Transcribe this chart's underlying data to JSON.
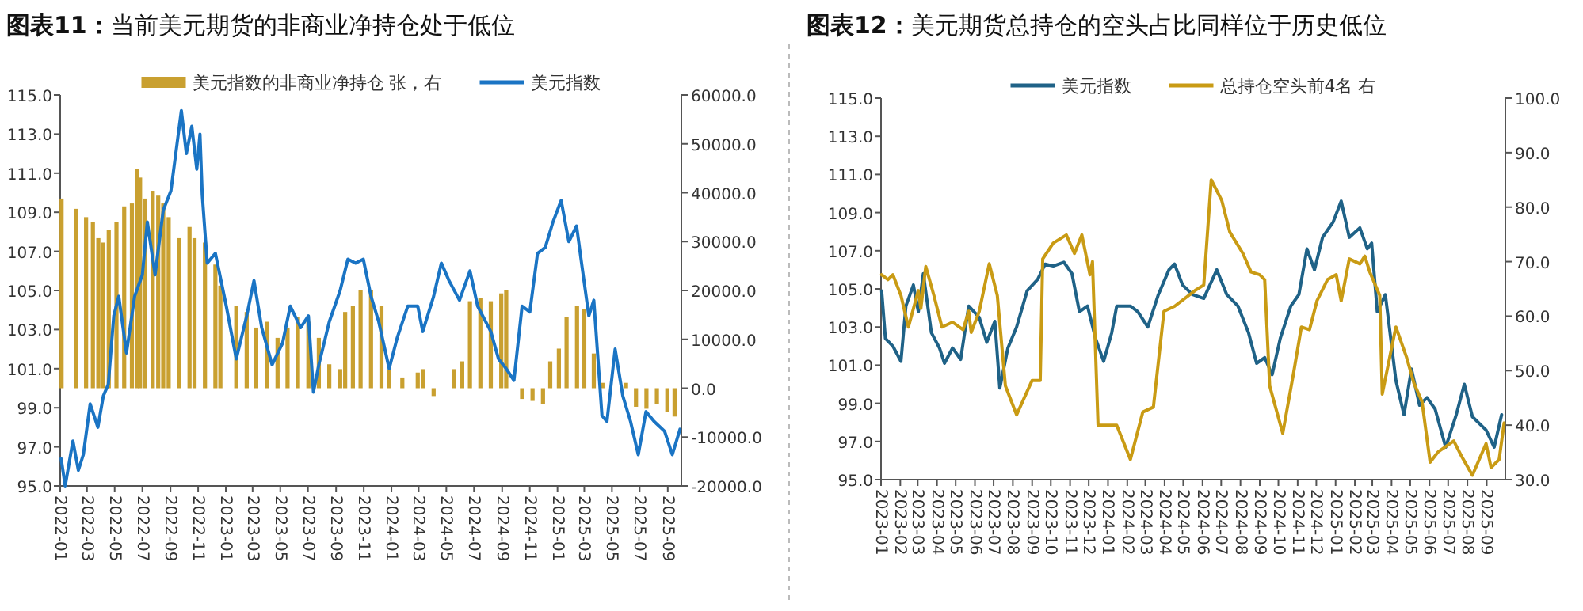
{
  "chart_data": [
    {
      "type": "line",
      "title": "**图表11：**当前美元期货的非商业净持仓处于低位",
      "legend": "top",
      "xlim": [
        "2022-01-01",
        "2025-10-01"
      ],
      "xticks": [
        "2022-01",
        "2022-03",
        "2022-05",
        "2022-07",
        "2022-09",
        "2022-11",
        "2023-01",
        "2023-03",
        "2023-05",
        "2023-07",
        "2023-09",
        "2023-11",
        "2024-01",
        "2024-03",
        "2024-05",
        "2024-07",
        "2024-09",
        "2024-11",
        "2025-01",
        "2025-03",
        "2025-05",
        "2025-07",
        "2025-09"
      ],
      "ylim": [
        95,
        115
      ],
      "yticks": [
        {
          "value": 95,
          "label": "95.0"
        },
        {
          "value": 97,
          "label": "97.0"
        },
        {
          "value": 99,
          "label": "99.0"
        },
        {
          "value": 101,
          "label": "101.0"
        },
        {
          "value": 103,
          "label": "103.0"
        },
        {
          "value": 105,
          "label": "105.0"
        },
        {
          "value": 107,
          "label": "107.0"
        },
        {
          "value": 109,
          "label": "109.0"
        },
        {
          "value": 111,
          "label": "111.0"
        },
        {
          "value": 113,
          "label": "113.0"
        },
        {
          "value": 115,
          "label": "115.0"
        }
      ],
      "y2lim": [
        -20000,
        60000
      ],
      "y2ticks": [
        {
          "value": -20000,
          "label": "-20000.0"
        },
        {
          "value": -10000,
          "label": "-10000.0"
        },
        {
          "value": 0,
          "label": "0.0"
        },
        {
          "value": 10000,
          "label": "10000.0"
        },
        {
          "value": 20000,
          "label": "20000.0"
        },
        {
          "value": 30000,
          "label": "30000.0"
        },
        {
          "value": 40000,
          "label": "40000.0"
        },
        {
          "value": 50000,
          "label": "50000.0"
        },
        {
          "value": 60000,
          "label": "60000.0"
        }
      ],
      "series": [
        {
          "name": "美元指数的非商业净持仓 张，右",
          "type": "bar",
          "axis": "y2",
          "color": "#c9a030",
          "x": [
            "2022-01-04",
            "2022-02-05",
            "2022-02-27",
            "2022-03-14",
            "2022-03-26",
            "2022-04-06",
            "2022-04-18",
            "2022-05-05",
            "2022-05-22",
            "2022-06-08",
            "2022-06-20",
            "2022-06-26",
            "2022-07-07",
            "2022-07-24",
            "2022-08-05",
            "2022-08-16",
            "2022-08-28",
            "2022-09-20",
            "2022-10-13",
            "2022-10-24",
            "2022-11-16",
            "2022-12-09",
            "2022-12-20",
            "2023-01-24",
            "2023-02-16",
            "2023-03-09",
            "2023-04-02",
            "2023-04-25",
            "2023-05-17",
            "2023-06-09",
            "2023-07-02",
            "2023-07-25",
            "2023-08-17",
            "2023-09-10",
            "2023-09-21",
            "2023-10-08",
            "2023-10-25",
            "2023-11-17",
            "2023-12-10",
            "2023-12-27",
            "2024-01-25",
            "2024-02-28",
            "2024-03-10",
            "2024-04-03",
            "2024-04-25",
            "2024-05-18",
            "2024-06-05",
            "2024-06-22",
            "2024-07-15",
            "2024-08-07",
            "2024-08-30",
            "2024-09-10",
            "2024-09-28",
            "2024-10-15",
            "2024-11-07",
            "2024-11-30",
            "2024-12-16",
            "2025-01-04",
            "2025-01-21",
            "2025-02-13",
            "2025-03-01",
            "2025-03-22",
            "2025-04-10",
            "2025-04-27",
            "2025-06-01",
            "2025-06-23",
            "2025-07-16",
            "2025-08-08",
            "2025-08-31",
            "2025-09-16"
          ],
          "values": [
            38800,
            36700,
            35000,
            34000,
            30700,
            29800,
            32400,
            34000,
            37200,
            37800,
            44800,
            43100,
            38800,
            40400,
            39400,
            37800,
            35000,
            30700,
            33000,
            30700,
            29800,
            25300,
            21000,
            16800,
            15600,
            12400,
            13600,
            10300,
            12400,
            14600,
            13600,
            10300,
            4900,
            3900,
            15600,
            16800,
            20000,
            20000,
            16800,
            3900,
            2200,
            3200,
            3900,
            -1600,
            0,
            3900,
            5500,
            17800,
            18400,
            17800,
            19400,
            20000,
            0,
            -2200,
            -2600,
            -3200,
            5500,
            8100,
            14600,
            16800,
            16200,
            7100,
            1100,
            0,
            1100,
            -3800,
            -4200,
            -3200,
            -4900,
            -5800
          ]
        },
        {
          "name": "美元指数",
          "color": "#1a74c4",
          "x": [
            "2022-01-03",
            "2022-01-12",
            "2022-01-29",
            "2022-02-10",
            "2022-02-21",
            "2022-03-08",
            "2022-03-25",
            "2022-04-06",
            "2022-04-17",
            "2022-04-29",
            "2022-05-10",
            "2022-05-27",
            "2022-06-14",
            "2022-07-01",
            "2022-07-12",
            "2022-07-29",
            "2022-08-16",
            "2022-09-02",
            "2022-09-25",
            "2022-10-06",
            "2022-10-18",
            "2022-10-29",
            "2022-11-05",
            "2022-11-10",
            "2022-11-21",
            "2022-12-09",
            "2023-01-02",
            "2023-01-24",
            "2023-02-16",
            "2023-03-04",
            "2023-03-21",
            "2023-04-13",
            "2023-05-06",
            "2023-05-23",
            "2023-06-15",
            "2023-07-02",
            "2023-07-13",
            "2023-07-25",
            "2023-08-17",
            "2023-09-10",
            "2023-09-27",
            "2023-10-14",
            "2023-10-31",
            "2023-11-17",
            "2023-12-04",
            "2023-12-27",
            "2024-01-14",
            "2024-02-06",
            "2024-02-28",
            "2024-03-10",
            "2024-04-03",
            "2024-04-20",
            "2024-05-07",
            "2024-05-30",
            "2024-06-22",
            "2024-07-09",
            "2024-08-07",
            "2024-08-24",
            "2024-09-10",
            "2024-09-27",
            "2024-10-15",
            "2024-11-01",
            "2024-11-18",
            "2024-12-05",
            "2024-12-22",
            "2025-01-09",
            "2025-01-26",
            "2025-02-12",
            "2025-02-23",
            "2025-03-11",
            "2025-03-22",
            "2025-04-09",
            "2025-04-20",
            "2025-05-08",
            "2025-05-25",
            "2025-06-11",
            "2025-06-28",
            "2025-07-15",
            "2025-08-02",
            "2025-08-25",
            "2025-09-11",
            "2025-09-28"
          ],
          "values": [
            96.4,
            95.0,
            97.3,
            95.8,
            96.6,
            99.2,
            98.0,
            99.6,
            100.2,
            103.7,
            104.7,
            101.8,
            104.7,
            105.8,
            108.5,
            105.8,
            109.1,
            110.1,
            114.2,
            112.0,
            113.4,
            111.2,
            113.0,
            109.9,
            106.4,
            106.9,
            104.2,
            101.5,
            103.7,
            105.5,
            103.1,
            101.2,
            102.3,
            104.2,
            103.1,
            103.7,
            99.8,
            101.2,
            103.4,
            105.0,
            106.6,
            106.4,
            106.6,
            104.7,
            103.4,
            101.0,
            102.6,
            104.2,
            104.2,
            102.9,
            104.7,
            106.4,
            105.5,
            104.5,
            106.0,
            104.2,
            102.9,
            101.5,
            101.0,
            100.4,
            104.2,
            103.9,
            106.9,
            107.2,
            108.5,
            109.6,
            107.5,
            108.3,
            106.4,
            103.7,
            104.5,
            98.6,
            98.3,
            102.0,
            99.6,
            98.3,
            96.6,
            98.8,
            98.3,
            97.8,
            96.6,
            97.9
          ]
        }
      ]
    },
    {
      "type": "line",
      "title": "**图表12：**美元期货总持仓的空头占比同样位于历史低位",
      "legend": "top",
      "xlim": [
        "2023-01-01",
        "2025-10-01"
      ],
      "xticks": [
        "2023-01",
        "2023-02",
        "2023-03",
        "2023-04",
        "2023-05",
        "2023-06",
        "2023-07",
        "2023-08",
        "2023-09",
        "2023-10",
        "2023-11",
        "2023-12",
        "2024-01",
        "2024-02",
        "2024-03",
        "2024-04",
        "2024-05",
        "2024-06",
        "2024-07",
        "2024-08",
        "2024-09",
        "2024-10",
        "2024-11",
        "2024-12",
        "2025-01",
        "2025-02",
        "2025-03",
        "2025-04",
        "2025-05",
        "2025-06",
        "2025-07",
        "2025-08",
        "2025-09"
      ],
      "ylim": [
        95,
        115
      ],
      "yticks": [
        {
          "value": 95,
          "label": "95.0"
        },
        {
          "value": 97,
          "label": "97.0"
        },
        {
          "value": 99,
          "label": "99.0"
        },
        {
          "value": 101,
          "label": "101.0"
        },
        {
          "value": 103,
          "label": "103.0"
        },
        {
          "value": 105,
          "label": "105.0"
        },
        {
          "value": 107,
          "label": "107.0"
        },
        {
          "value": 109,
          "label": "109.0"
        },
        {
          "value": 111,
          "label": "111.0"
        },
        {
          "value": 113,
          "label": "113.0"
        },
        {
          "value": 115,
          "label": "115.0"
        }
      ],
      "y2lim": [
        30,
        100
      ],
      "y2ticks": [
        {
          "value": 30,
          "label": "30.0"
        },
        {
          "value": 40,
          "label": "40.0"
        },
        {
          "value": 50,
          "label": "50.0"
        },
        {
          "value": 60,
          "label": "60.0"
        },
        {
          "value": 70,
          "label": "70.0"
        },
        {
          "value": 80,
          "label": "80.0"
        },
        {
          "value": 90,
          "label": "90.0"
        },
        {
          "value": 100,
          "label": "100.0"
        }
      ],
      "series": [
        {
          "name": "美元指数",
          "color": "#1f6287",
          "x": [
            "2023-01-02",
            "2023-01-08",
            "2023-01-20",
            "2023-02-02",
            "2023-02-10",
            "2023-02-22",
            "2023-03-02",
            "2023-03-10",
            "2023-03-23",
            "2023-04-05",
            "2023-04-13",
            "2023-04-26",
            "2023-05-09",
            "2023-05-22",
            "2023-06-08",
            "2023-06-20",
            "2023-07-03",
            "2023-07-11",
            "2023-07-24",
            "2023-08-07",
            "2023-08-24",
            "2023-09-10",
            "2023-09-22",
            "2023-10-05",
            "2023-10-22",
            "2023-11-04",
            "2023-11-16",
            "2023-11-29",
            "2023-12-12",
            "2023-12-25",
            "2024-01-07",
            "2024-01-15",
            "2024-02-06",
            "2024-02-18",
            "2024-03-05",
            "2024-03-22",
            "2024-04-08",
            "2024-04-17",
            "2024-04-30",
            "2024-05-16",
            "2024-06-03",
            "2024-06-24",
            "2024-07-10",
            "2024-07-28",
            "2024-08-14",
            "2024-08-27",
            "2024-09-09",
            "2024-09-21",
            "2024-10-04",
            "2024-10-21",
            "2024-11-03",
            "2024-11-16",
            "2024-11-28",
            "2024-12-11",
            "2024-12-28",
            "2025-01-10",
            "2025-01-23",
            "2025-02-09",
            "2025-02-21",
            "2025-02-28",
            "2025-03-09",
            "2025-03-22",
            "2025-04-08",
            "2025-04-21",
            "2025-05-03",
            "2025-05-16",
            "2025-05-28",
            "2025-06-10",
            "2025-06-27",
            "2025-07-14",
            "2025-07-27",
            "2025-08-09",
            "2025-08-31",
            "2025-09-13",
            "2025-09-25"
          ],
          "values": [
            104.9,
            102.4,
            102.0,
            101.2,
            104.1,
            105.2,
            103.8,
            105.8,
            102.7,
            101.9,
            101.1,
            101.9,
            101.3,
            104.1,
            103.5,
            102.2,
            103.3,
            99.8,
            101.9,
            103.0,
            104.9,
            105.5,
            106.3,
            106.2,
            106.4,
            105.8,
            103.8,
            104.1,
            102.4,
            101.2,
            102.7,
            104.1,
            104.1,
            103.8,
            103.0,
            104.7,
            106.0,
            106.3,
            105.2,
            104.7,
            104.5,
            106.0,
            104.7,
            104.1,
            102.7,
            101.1,
            101.4,
            100.5,
            102.4,
            104.1,
            104.7,
            107.1,
            106.0,
            107.7,
            108.5,
            109.6,
            107.7,
            108.2,
            107.1,
            107.4,
            103.8,
            104.7,
            100.2,
            98.4,
            100.8,
            98.9,
            99.3,
            98.7,
            96.7,
            98.4,
            100.0,
            98.3,
            97.6,
            96.7,
            98.4
          ]
        },
        {
          "name": "总持仓空头前4名 右",
          "axis": "y2",
          "color": "#c99b14",
          "x": [
            "2023-01-02",
            "2023-01-12",
            "2023-01-20",
            "2023-02-02",
            "2023-02-14",
            "2023-03-02",
            "2023-03-06",
            "2023-03-14",
            "2023-03-27",
            "2023-04-09",
            "2023-04-26",
            "2023-05-13",
            "2023-05-22",
            "2023-05-26",
            "2023-06-08",
            "2023-06-24",
            "2023-07-07",
            "2023-07-20",
            "2023-08-07",
            "2023-09-01",
            "2023-09-14",
            "2023-09-18",
            "2023-10-05",
            "2023-10-26",
            "2023-11-08",
            "2023-11-20",
            "2023-12-03",
            "2023-12-07",
            "2023-12-16",
            "2024-01-15",
            "2024-02-06",
            "2024-02-26",
            "2024-03-14",
            "2024-03-31",
            "2024-04-17",
            "2024-05-20",
            "2024-06-03",
            "2024-06-15",
            "2024-07-02",
            "2024-07-15",
            "2024-08-05",
            "2024-08-18",
            "2024-09-01",
            "2024-09-09",
            "2024-09-17",
            "2024-10-08",
            "2024-10-25",
            "2024-11-07",
            "2024-11-20",
            "2024-12-02",
            "2024-12-19",
            "2025-01-02",
            "2025-01-10",
            "2025-01-23",
            "2025-02-09",
            "2025-02-17",
            "2025-02-25",
            "2025-03-13",
            "2025-03-17",
            "2025-04-08",
            "2025-04-25",
            "2025-05-07",
            "2025-05-20",
            "2025-06-02",
            "2025-06-15",
            "2025-07-10",
            "2025-07-23",
            "2025-08-09",
            "2025-08-31",
            "2025-09-08",
            "2025-09-21",
            "2025-09-29"
          ],
          "values": [
            67.6,
            66.7,
            67.6,
            63.8,
            58.0,
            64.7,
            61.4,
            69.1,
            63.8,
            58.0,
            58.9,
            57.5,
            60.9,
            57.0,
            60.9,
            69.6,
            63.8,
            47.2,
            41.9,
            48.2,
            48.2,
            70.5,
            73.4,
            74.9,
            71.5,
            74.9,
            67.6,
            70.0,
            40.0,
            40.0,
            33.7,
            42.4,
            43.3,
            60.9,
            61.8,
            64.7,
            65.7,
            85.0,
            81.2,
            75.4,
            71.5,
            68.1,
            67.6,
            66.7,
            47.2,
            38.5,
            49.3,
            58.0,
            57.5,
            62.8,
            66.7,
            67.6,
            62.8,
            70.5,
            69.6,
            71.0,
            68.1,
            63.8,
            45.7,
            58.0,
            52.5,
            47.7,
            44.3,
            33.2,
            35.1,
            37.1,
            34.2,
            30.8,
            36.6,
            32.2,
            33.7,
            40.4
          ]
        }
      ]
    }
  ]
}
